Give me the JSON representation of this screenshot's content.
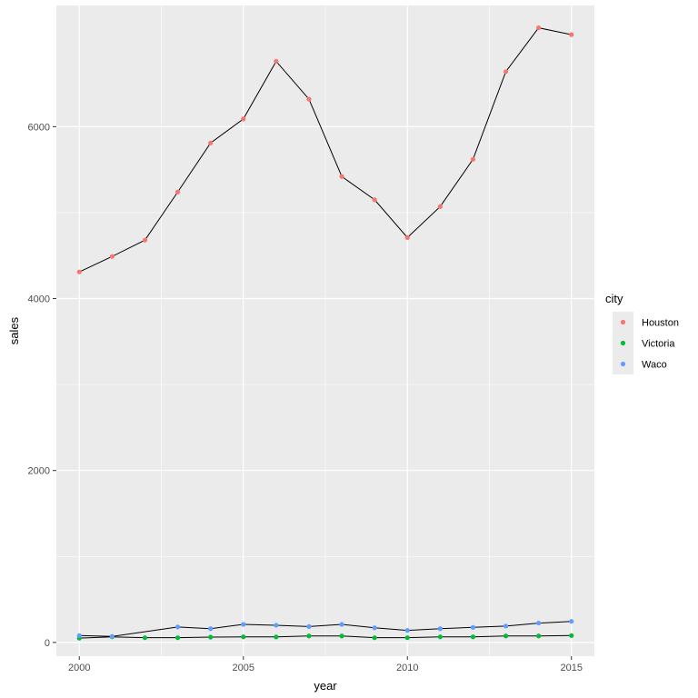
{
  "chart_data": {
    "type": "line",
    "title": "",
    "xlabel": "year",
    "ylabel": "sales",
    "xlim": [
      1999.3,
      2015.7
    ],
    "ylim": [
      -160,
      7410
    ],
    "x_ticks": [
      2000,
      2005,
      2010,
      2015
    ],
    "y_ticks": [
      0,
      2000,
      4000,
      6000
    ],
    "grid": true,
    "line_color": "#000000",
    "legend": {
      "title": "city",
      "placement": "right"
    },
    "series": [
      {
        "name": "Houston",
        "color": "#F8766D",
        "x": [
          2000,
          2001,
          2002,
          2003,
          2004,
          2005,
          2006,
          2007,
          2008,
          2009,
          2010,
          2011,
          2012,
          2013,
          2014,
          2015
        ],
        "values": [
          4310,
          4490,
          4680,
          5240,
          5810,
          6090,
          6760,
          6320,
          5420,
          5150,
          4710,
          5070,
          5620,
          6640,
          7150,
          7070
        ]
      },
      {
        "name": "Victoria",
        "color": "#00BA38",
        "x": [
          2000,
          2001,
          2002,
          2003,
          2004,
          2005,
          2006,
          2007,
          2008,
          2009,
          2010,
          2011,
          2012,
          2013,
          2014,
          2015
        ],
        "values": [
          50,
          65,
          55,
          55,
          62,
          65,
          64,
          75,
          75,
          55,
          55,
          65,
          65,
          75,
          75,
          80
        ]
      },
      {
        "name": "Waco",
        "color": "#619CFF",
        "x": [
          2000,
          2001,
          2003,
          2004,
          2005,
          2006,
          2007,
          2008,
          2009,
          2010,
          2011,
          2012,
          2013,
          2014,
          2015
        ],
        "values": [
          80,
          70,
          180,
          160,
          210,
          200,
          185,
          210,
          170,
          140,
          160,
          175,
          190,
          225,
          245
        ]
      }
    ]
  }
}
